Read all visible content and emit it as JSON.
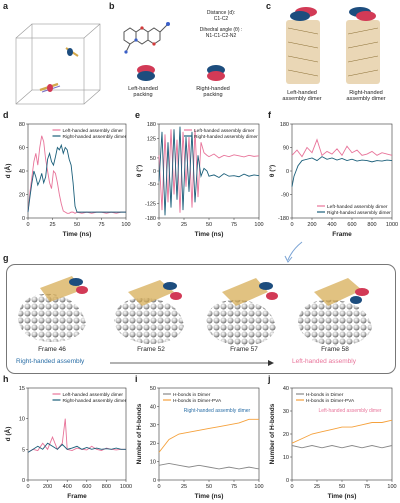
{
  "figure": {
    "panel_labels": [
      "a",
      "b",
      "c",
      "d",
      "e",
      "f",
      "g",
      "h",
      "i",
      "j"
    ],
    "b": {
      "distance_line1": "Distance (d):",
      "distance_line2": "C1-C2",
      "dihedral_line1": "Dihedral angle (θ) :",
      "dihedral_line2": "N1-C1-C2-N2",
      "left_packing_line1": "Left-handed",
      "left_packing_line2": "packing",
      "right_packing_line1": "Right-handed",
      "right_packing_line2": "packing"
    },
    "c": {
      "left_line1": "Left-handed",
      "left_line2": "assembly dimer",
      "right_line1": "Right-handed",
      "right_line2": "assembly dimer"
    },
    "g": {
      "frames": [
        "Frame 46",
        "Frame 52",
        "Frame 57",
        "Frame 58"
      ],
      "start_label": "Right-handed assembly",
      "end_label": "Left-handed assembly"
    },
    "colors": {
      "left": "#e8749a",
      "right": "#1b5f7a",
      "orange": "#f5a13c",
      "gray": "#888888",
      "text_blue": "#2a6ea6",
      "text_pink": "#e8749a"
    }
  },
  "chart_data": [
    {
      "panel": "d",
      "type": "line",
      "xlabel": "Time (ns)",
      "ylabel": "d (Å)",
      "xlim": [
        0,
        100
      ],
      "ylim": [
        0,
        80
      ],
      "xticks": [
        0,
        25,
        50,
        75,
        100
      ],
      "yticks": [
        0,
        20,
        40,
        60,
        80
      ],
      "legend": "top-right",
      "series": [
        {
          "name": "Left-handed assembly dimer",
          "color": "#e8749a",
          "x": [
            0,
            2,
            4,
            6,
            8,
            10,
            12,
            14,
            16,
            18,
            20,
            22,
            24,
            26,
            28,
            30,
            32,
            34,
            36,
            38,
            40,
            42,
            44,
            46,
            48,
            50,
            55,
            60,
            65,
            70,
            75,
            80,
            85,
            90,
            95,
            100
          ],
          "y": [
            5,
            22,
            35,
            48,
            55,
            45,
            60,
            70,
            65,
            50,
            40,
            30,
            25,
            40,
            38,
            30,
            20,
            12,
            6,
            5,
            4,
            4,
            5,
            5,
            4,
            5,
            4,
            5,
            4,
            5,
            5,
            4,
            5,
            4,
            5,
            5
          ]
        },
        {
          "name": "Right-handed assembly dimer",
          "color": "#1b5f7a",
          "x": [
            0,
            2,
            4,
            6,
            8,
            10,
            12,
            14,
            16,
            18,
            20,
            22,
            24,
            26,
            28,
            30,
            32,
            34,
            36,
            38,
            40,
            42,
            44,
            46,
            48,
            50,
            55,
            60,
            65,
            70,
            75,
            80,
            85,
            90,
            95,
            100
          ],
          "y": [
            5,
            18,
            30,
            40,
            35,
            28,
            32,
            38,
            30,
            35,
            50,
            55,
            48,
            45,
            52,
            60,
            58,
            62,
            55,
            60,
            58,
            50,
            45,
            30,
            10,
            5,
            5,
            5,
            5,
            5,
            5,
            5,
            5,
            5,
            5,
            5
          ]
        }
      ]
    },
    {
      "panel": "e",
      "type": "line",
      "xlabel": "Time (ns)",
      "ylabel": "θ (°)",
      "xlim": [
        0,
        100
      ],
      "ylim": [
        -180,
        180
      ],
      "xticks": [
        0,
        25,
        50,
        75,
        100
      ],
      "yticks": [
        -180,
        -125,
        -50,
        0,
        50,
        125,
        180
      ],
      "legend": "top-right",
      "series": [
        {
          "name": "Left-handed assembly dimer",
          "color": "#e8749a",
          "x": [
            0,
            3,
            6,
            9,
            12,
            15,
            18,
            21,
            24,
            27,
            30,
            33,
            36,
            39,
            42,
            45,
            48,
            50,
            55,
            60,
            65,
            70,
            75,
            80,
            85,
            90,
            95,
            100
          ],
          "y": [
            60,
            -150,
            140,
            -120,
            160,
            -90,
            120,
            -160,
            150,
            -60,
            130,
            -140,
            160,
            -100,
            110,
            70,
            60,
            55,
            65,
            50,
            60,
            55,
            62,
            58,
            54,
            60,
            56,
            58
          ]
        },
        {
          "name": "Right-handed assembly dimer",
          "color": "#1b5f7a",
          "x": [
            0,
            3,
            6,
            9,
            12,
            15,
            18,
            21,
            24,
            27,
            30,
            33,
            36,
            39,
            42,
            45,
            48,
            50,
            55,
            60,
            65,
            70,
            75,
            80,
            85,
            90,
            95,
            100
          ],
          "y": [
            -40,
            150,
            -170,
            110,
            -140,
            160,
            -110,
            170,
            -150,
            130,
            -80,
            150,
            -120,
            60,
            -20,
            10,
            0,
            -20,
            -15,
            -25,
            -10,
            -20,
            -18,
            -22,
            -12,
            -20,
            -15,
            -18
          ]
        }
      ]
    },
    {
      "panel": "f",
      "type": "line",
      "xlabel": "Frame",
      "ylabel": "θ (°)",
      "xlim": [
        0,
        1000
      ],
      "ylim": [
        -180,
        180
      ],
      "xticks": [
        0,
        200,
        400,
        600,
        800,
        1000
      ],
      "yticks": [
        -180,
        -90,
        0,
        90,
        180
      ],
      "legend": "bottom-right",
      "series": [
        {
          "name": "Left-handed assembly dimer",
          "color": "#e8749a",
          "x": [
            0,
            50,
            100,
            150,
            200,
            250,
            300,
            350,
            400,
            450,
            500,
            550,
            600,
            650,
            700,
            750,
            800,
            850,
            900,
            950,
            1000
          ],
          "y": [
            60,
            80,
            55,
            90,
            70,
            120,
            60,
            75,
            65,
            85,
            60,
            95,
            70,
            80,
            60,
            65,
            75,
            60,
            70,
            65,
            60
          ]
        },
        {
          "name": "Right-handed assembly dimer",
          "color": "#1b5f7a",
          "x": [
            0,
            20,
            40,
            60,
            80,
            100,
            150,
            200,
            250,
            300,
            350,
            400,
            450,
            500,
            550,
            600,
            650,
            700,
            750,
            800,
            850,
            900,
            950,
            1000
          ],
          "y": [
            -60,
            -20,
            0,
            20,
            30,
            40,
            45,
            50,
            40,
            55,
            45,
            50,
            42,
            48,
            40,
            45,
            38,
            42,
            40,
            35,
            40,
            38,
            42,
            40
          ]
        }
      ]
    },
    {
      "panel": "h",
      "type": "line",
      "xlabel": "Frame",
      "ylabel": "d (Å)",
      "xlim": [
        0,
        1000
      ],
      "ylim": [
        0,
        15
      ],
      "xticks": [
        0,
        200,
        400,
        600,
        800,
        1000
      ],
      "yticks": [
        0,
        5,
        10,
        15
      ],
      "legend": "top-right",
      "series": [
        {
          "name": "Left-handed assembly dimer",
          "color": "#e8749a",
          "x": [
            0,
            50,
            100,
            150,
            200,
            250,
            300,
            350,
            380,
            400,
            450,
            500,
            550,
            600,
            650,
            700,
            750,
            800,
            850,
            900,
            950,
            1000
          ],
          "y": [
            4.5,
            5,
            4.8,
            6,
            5,
            7,
            5,
            6,
            10,
            5,
            4.8,
            5.2,
            5,
            4.9,
            5.5,
            5,
            4.8,
            5.2,
            5,
            4.9,
            5,
            5
          ]
        },
        {
          "name": "Right-handed assembly dimer",
          "color": "#1b5f7a",
          "x": [
            0,
            50,
            100,
            150,
            200,
            250,
            300,
            350,
            400,
            450,
            500,
            550,
            600,
            650,
            700,
            750,
            800,
            850,
            900,
            950,
            1000
          ],
          "y": [
            4.5,
            5,
            5.5,
            5,
            6,
            5.5,
            5,
            5.8,
            5,
            5.2,
            5.5,
            5,
            5.3,
            5,
            5.2,
            5,
            5.1,
            5,
            5.2,
            5,
            5
          ]
        }
      ]
    },
    {
      "panel": "i",
      "type": "line",
      "xlabel": "Time (ns)",
      "ylabel": "Number of H-bonds",
      "xlim": [
        0,
        100
      ],
      "ylim": [
        0,
        50
      ],
      "xticks": [
        0,
        25,
        50,
        75,
        100
      ],
      "yticks": [
        0,
        10,
        20,
        30,
        40,
        50
      ],
      "legend": "top-left",
      "annotation": "Right-handed assembly dimer",
      "series": [
        {
          "name": "H-bonds in Dimer",
          "color": "#888888",
          "x": [
            0,
            10,
            20,
            30,
            40,
            50,
            60,
            70,
            80,
            90,
            100
          ],
          "y": [
            8,
            9,
            8,
            7,
            8,
            7,
            6,
            7,
            6,
            7,
            6
          ]
        },
        {
          "name": "H-bonds in Dimer-PVA",
          "color": "#f5a13c",
          "x": [
            0,
            10,
            20,
            30,
            40,
            50,
            60,
            70,
            80,
            90,
            100
          ],
          "y": [
            15,
            22,
            25,
            26,
            27,
            28,
            29,
            30,
            31,
            33,
            33
          ]
        }
      ]
    },
    {
      "panel": "j",
      "type": "line",
      "xlabel": "Time (ns)",
      "ylabel": "Number of H-bonds",
      "xlim": [
        0,
        100
      ],
      "ylim": [
        0,
        40
      ],
      "xticks": [
        0,
        25,
        50,
        75,
        100
      ],
      "yticks": [
        0,
        10,
        20,
        30,
        40
      ],
      "legend": "top-left",
      "annotation": "Left-handed assembly dimer",
      "series": [
        {
          "name": "H-bonds in Dimer",
          "color": "#888888",
          "x": [
            0,
            10,
            20,
            30,
            40,
            50,
            60,
            70,
            80,
            90,
            100
          ],
          "y": [
            15,
            14,
            15,
            14,
            15,
            14,
            15,
            14,
            15,
            14,
            15
          ]
        },
        {
          "name": "H-bonds in Dimer-PVA",
          "color": "#f5a13c",
          "x": [
            0,
            10,
            20,
            30,
            40,
            50,
            60,
            70,
            80,
            90,
            100
          ],
          "y": [
            16,
            18,
            20,
            21,
            22,
            23,
            23,
            24,
            25,
            25,
            26
          ]
        }
      ]
    }
  ]
}
